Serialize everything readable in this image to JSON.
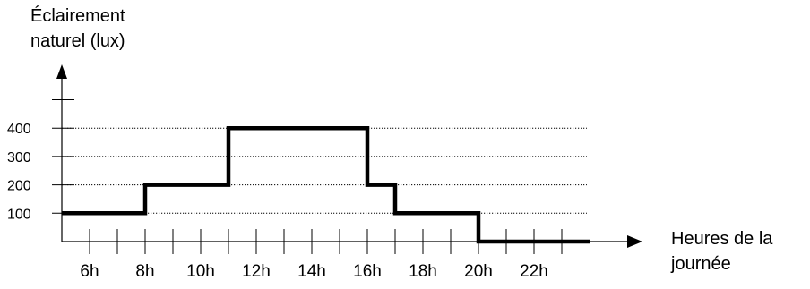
{
  "chart_data": {
    "type": "line",
    "step": true,
    "ylabel_lines": [
      "Éclairement",
      "naturel (lux)"
    ],
    "xlabel_lines": [
      "Heures de la",
      "journée"
    ],
    "yticks": [
      100,
      200,
      300,
      400
    ],
    "ytick_labels": [
      "100",
      "200",
      "300",
      "400"
    ],
    "xticks": [
      6,
      8,
      10,
      12,
      14,
      16,
      18,
      20,
      22
    ],
    "xtick_labels": [
      "6h",
      "8h",
      "10h",
      "12h",
      "14h",
      "16h",
      "18h",
      "20h",
      "22h"
    ],
    "xlim": [
      5,
      24
    ],
    "ylim": [
      0,
      500
    ],
    "grid": "horizontal dotted",
    "series": [
      {
        "x": [
          5,
          8,
          8,
          11,
          11,
          16,
          16,
          17,
          17,
          20,
          20,
          24
        ],
        "y": [
          100,
          100,
          200,
          200,
          400,
          400,
          200,
          200,
          100,
          100,
          0,
          0
        ]
      }
    ]
  }
}
